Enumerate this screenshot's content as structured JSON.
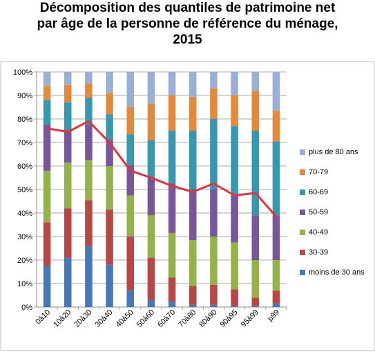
{
  "chart_data": {
    "type": "bar",
    "stacked": true,
    "normalized": true,
    "title_lines": [
      "Décomposition des quantiles de patrimoine net",
      "par  âge de la personne de référence du ménage,",
      "2015"
    ],
    "categories": [
      "0à10",
      "10à20",
      "20à30",
      "30à40",
      "40à50",
      "50à60",
      "60à70",
      "70à80",
      "80à90",
      "90à95",
      "95à99",
      "p99"
    ],
    "yticks": [
      "0%",
      "10%",
      "20%",
      "30%",
      "40%",
      "50%",
      "60%",
      "70%",
      "80%",
      "90%",
      "100%"
    ],
    "ylim": [
      0,
      100
    ],
    "grid": true,
    "legend_position": "right",
    "series": [
      {
        "name": "moins de 30 ans",
        "color": "#4677b6",
        "values": [
          17.5,
          21,
          26,
          18,
          7,
          3,
          2.5,
          1,
          1,
          0.5,
          0.5,
          1.5
        ]
      },
      {
        "name": "30-39",
        "color": "#b84644",
        "values": [
          18.5,
          21,
          19.5,
          23.5,
          23,
          18,
          10,
          8,
          8.5,
          7,
          3.5,
          5.5
        ]
      },
      {
        "name": "40-49",
        "color": "#93b34a",
        "values": [
          22,
          19.5,
          17,
          18.5,
          17.5,
          18,
          19,
          19.5,
          20.5,
          20,
          16,
          13
        ]
      },
      {
        "name": "50-59",
        "color": "#77579a",
        "values": [
          19.5,
          14,
          15,
          11,
          13,
          16,
          21,
          21.5,
          20,
          20,
          19,
          19
        ]
      },
      {
        "name": "60-69",
        "color": "#3797af",
        "values": [
          10.5,
          11.5,
          11.5,
          11,
          13,
          16,
          22.5,
          25,
          30,
          29.5,
          36,
          31.5
        ]
      },
      {
        "name": "70-79",
        "color": "#e4893a",
        "values": [
          6,
          7.5,
          6,
          9,
          11.5,
          15.5,
          15,
          14.5,
          13,
          13,
          17,
          13
        ]
      },
      {
        "name": "plus de 80 ans",
        "color": "#98b0d6",
        "values": [
          6,
          5.5,
          5,
          9,
          15,
          13.5,
          10,
          10.5,
          7,
          10,
          8,
          16.5
        ]
      }
    ],
    "line": {
      "color": "#e8303b",
      "values": [
        76,
        74.5,
        79,
        70,
        58,
        55,
        51.5,
        49,
        52.5,
        47.5,
        48.5,
        38.5
      ]
    }
  }
}
